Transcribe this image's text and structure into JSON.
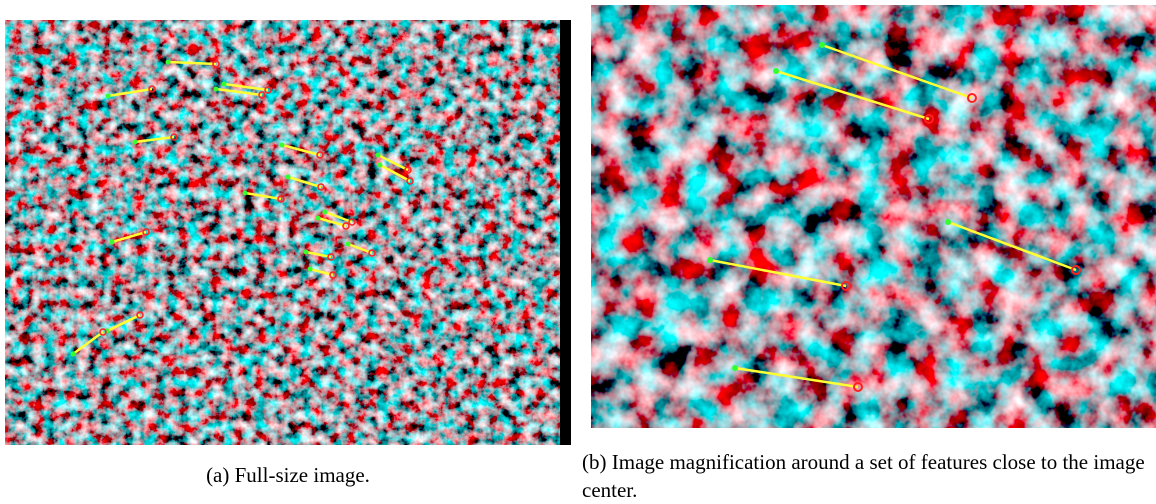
{
  "figure": {
    "subfigures": [
      {
        "caption": "(a) Full-size image."
      },
      {
        "caption": "(b) Image magnification around a set of features close to the image center."
      }
    ]
  }
}
